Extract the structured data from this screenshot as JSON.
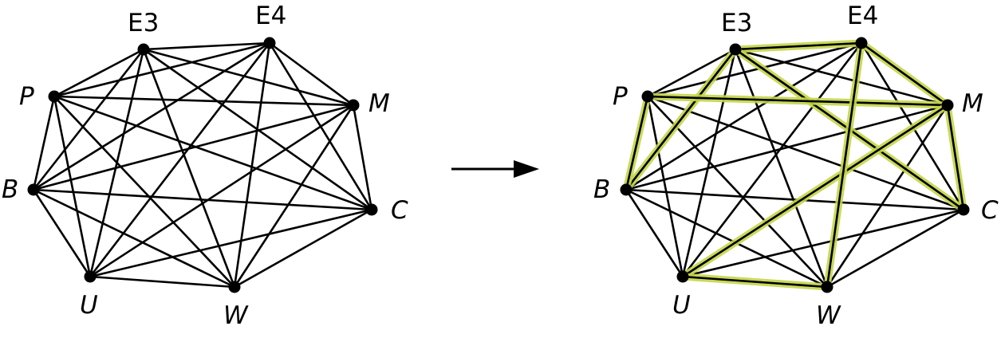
{
  "graphs": [
    {
      "id": "left",
      "nodes": [
        {
          "key": "E3",
          "label": "E3",
          "italic": false
        },
        {
          "key": "E4",
          "label": "E4",
          "italic": false
        },
        {
          "key": "P",
          "label": "P",
          "italic": true
        },
        {
          "key": "M",
          "label": "M",
          "italic": true
        },
        {
          "key": "B",
          "label": "B",
          "italic": true
        },
        {
          "key": "C",
          "label": "C",
          "italic": true
        },
        {
          "key": "U",
          "label": "U",
          "italic": true
        },
        {
          "key": "W",
          "label": "W",
          "italic": true
        }
      ],
      "complete_graph": true,
      "highlighted_edges": []
    },
    {
      "id": "right",
      "nodes": [
        {
          "key": "E3",
          "label": "E3",
          "italic": false
        },
        {
          "key": "E4",
          "label": "E4",
          "italic": false
        },
        {
          "key": "P",
          "label": "P",
          "italic": true
        },
        {
          "key": "M",
          "label": "M",
          "italic": true
        },
        {
          "key": "B",
          "label": "B",
          "italic": true
        },
        {
          "key": "C",
          "label": "C",
          "italic": true
        },
        {
          "key": "U",
          "label": "U",
          "italic": true
        },
        {
          "key": "W",
          "label": "W",
          "italic": true
        }
      ],
      "complete_graph": true,
      "highlighted_edges": [
        [
          "E3",
          "E4"
        ],
        [
          "E4",
          "M"
        ],
        [
          "M",
          "C"
        ],
        [
          "C",
          "E3"
        ],
        [
          "E3",
          "B"
        ],
        [
          "B",
          "P"
        ],
        [
          "P",
          "M"
        ],
        [
          "M",
          "U"
        ],
        [
          "U",
          "W"
        ],
        [
          "W",
          "E4"
        ]
      ]
    }
  ],
  "arrow": {
    "direction": "right"
  },
  "colors": {
    "edge": "#000000",
    "highlight": "#c5d54a",
    "highlight_core": "#7f8f17"
  }
}
